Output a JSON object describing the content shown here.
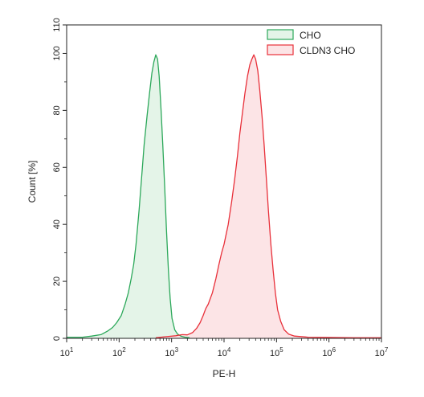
{
  "chart_data": {
    "type": "area",
    "title": "",
    "xlabel": "PE-H",
    "ylabel": "Count [%]",
    "xscale": "log",
    "xlim": [
      10,
      10000000
    ],
    "ylim": [
      0,
      110
    ],
    "x_ticks": [
      {
        "value": 10,
        "base": "10",
        "exp": "1"
      },
      {
        "value": 100,
        "base": "10",
        "exp": "2"
      },
      {
        "value": 1000,
        "base": "10",
        "exp": "3"
      },
      {
        "value": 10000,
        "base": "10",
        "exp": "4"
      },
      {
        "value": 100000,
        "base": "10",
        "exp": "5"
      },
      {
        "value": 1000000,
        "base": "10",
        "exp": "6"
      },
      {
        "value": 10000000,
        "base": "10",
        "exp": "7"
      }
    ],
    "y_ticks": [
      0,
      20,
      40,
      60,
      80,
      100,
      110
    ],
    "grid": false,
    "legend_position": "top-right",
    "series": [
      {
        "name": "CHO",
        "color": "#2ca85a",
        "fill": "#e4f4e8",
        "points": [
          [
            10,
            0.4
          ],
          [
            20,
            0.4
          ],
          [
            30,
            0.8
          ],
          [
            45,
            1.3
          ],
          [
            60,
            2.5
          ],
          [
            75,
            3.8
          ],
          [
            90,
            5.5
          ],
          [
            110,
            8
          ],
          [
            130,
            12
          ],
          [
            150,
            16
          ],
          [
            170,
            21
          ],
          [
            190,
            26
          ],
          [
            210,
            33
          ],
          [
            240,
            45
          ],
          [
            270,
            57
          ],
          [
            300,
            68
          ],
          [
            340,
            78
          ],
          [
            380,
            86
          ],
          [
            420,
            93
          ],
          [
            460,
            97
          ],
          [
            500,
            99.5
          ],
          [
            540,
            98
          ],
          [
            580,
            92
          ],
          [
            630,
            80
          ],
          [
            680,
            68
          ],
          [
            740,
            53
          ],
          [
            800,
            38
          ],
          [
            870,
            24
          ],
          [
            940,
            14
          ],
          [
            1020,
            7
          ],
          [
            1150,
            3
          ],
          [
            1300,
            1.5
          ],
          [
            1500,
            0.8
          ],
          [
            1800,
            0.4
          ],
          [
            2200,
            0.2
          ]
        ]
      },
      {
        "name": "CLDN3 CHO",
        "color": "#e8303a",
        "fill": "#fce4e6",
        "points": [
          [
            500,
            0.2
          ],
          [
            800,
            0.6
          ],
          [
            1200,
            0.9
          ],
          [
            1600,
            1.3
          ],
          [
            2000,
            1.2
          ],
          [
            2500,
            2
          ],
          [
            3000,
            3.5
          ],
          [
            3500,
            5.5
          ],
          [
            4000,
            8
          ],
          [
            4500,
            10.5
          ],
          [
            5000,
            12
          ],
          [
            6000,
            16
          ],
          [
            7000,
            21
          ],
          [
            8000,
            26
          ],
          [
            9000,
            30
          ],
          [
            10000,
            33
          ],
          [
            12000,
            40
          ],
          [
            14000,
            48
          ],
          [
            16000,
            56
          ],
          [
            18000,
            64
          ],
          [
            20000,
            72
          ],
          [
            22000,
            78
          ],
          [
            25000,
            86
          ],
          [
            28000,
            92
          ],
          [
            31000,
            96
          ],
          [
            34000,
            98
          ],
          [
            37000,
            99.5
          ],
          [
            40000,
            98
          ],
          [
            44000,
            94
          ],
          [
            48000,
            87
          ],
          [
            53000,
            78
          ],
          [
            58000,
            68
          ],
          [
            64000,
            56
          ],
          [
            70000,
            45
          ],
          [
            78000,
            33
          ],
          [
            86000,
            24
          ],
          [
            95000,
            16
          ],
          [
            105000,
            10
          ],
          [
            120000,
            6
          ],
          [
            140000,
            3
          ],
          [
            170000,
            1.5
          ],
          [
            220000,
            0.8
          ],
          [
            400000,
            0.4
          ],
          [
            1000000,
            0.3
          ],
          [
            3000000,
            0.2
          ],
          [
            10000000,
            0.2
          ]
        ]
      }
    ]
  }
}
